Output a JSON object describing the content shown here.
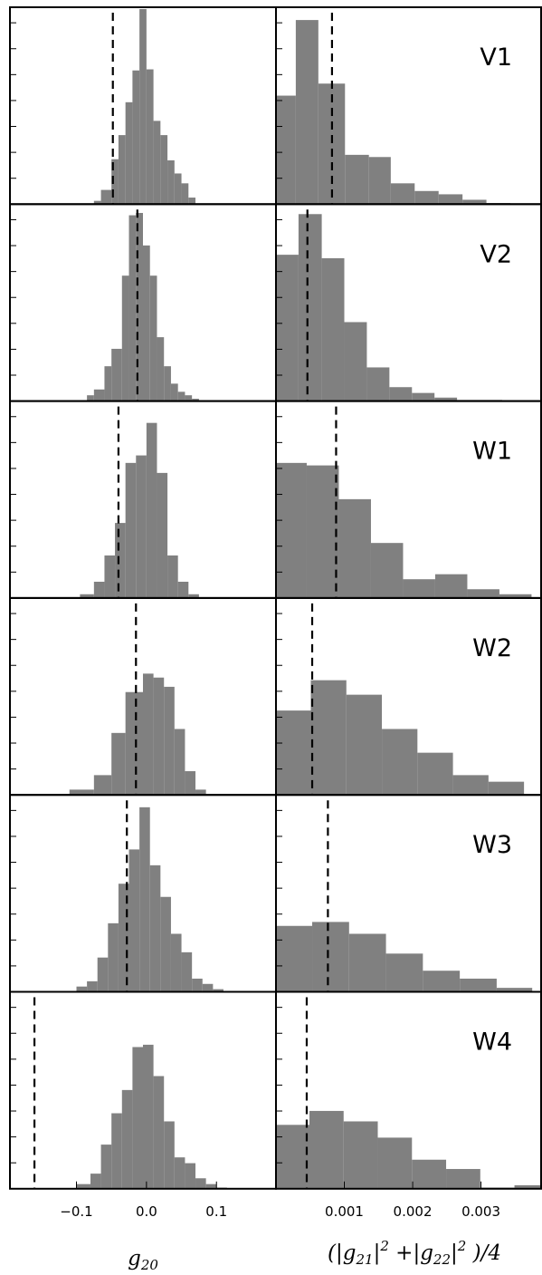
{
  "chart_data": {
    "type": "bar",
    "rows": [
      "V1",
      "V2",
      "W1",
      "W2",
      "W3",
      "W4"
    ],
    "columns": [
      {
        "name": "g20",
        "xlabel": "g_20",
        "xlim": [
          -0.195,
          0.185
        ],
        "xticks": [
          -0.1,
          0.0,
          0.1
        ],
        "xtick_labels": [
          "−0.1",
          "0.0",
          "0.1"
        ]
      },
      {
        "name": "g21g22",
        "xlabel": "(|g_21|^2 +|g_22|^2 )/4",
        "xlim": [
          0.0,
          0.00388
        ],
        "xticks": [
          0.001,
          0.002,
          0.003
        ],
        "xtick_labels": [
          "0.001",
          "0.002",
          "0.003"
        ]
      }
    ],
    "panels": [
      {
        "row": "V1",
        "col": 0,
        "label": "",
        "edges": [
          -0.075,
          -0.065,
          -0.05,
          -0.04,
          -0.03,
          -0.02,
          -0.01,
          0.0,
          0.01,
          0.02,
          0.03,
          0.04,
          0.05,
          0.06,
          0.07
        ],
        "counts": [
          3,
          13,
          41,
          63,
          93,
          122,
          178,
          123,
          76,
          63,
          40,
          28,
          19,
          6
        ],
        "ymax": 178,
        "dashed_x": -0.048
      },
      {
        "row": "V1",
        "col": 1,
        "label": "V1",
        "edges": [
          0.0,
          0.00029,
          0.00062,
          0.00101,
          0.00136,
          0.00168,
          0.00203,
          0.00238,
          0.00273,
          0.00308,
          0.00343
        ],
        "counts": [
          99,
          168,
          110,
          45,
          43,
          19,
          12,
          9,
          4,
          1
        ],
        "ymax": 178,
        "dashed_x": 0.00082
      },
      {
        "row": "V2",
        "col": 0,
        "label": "",
        "edges": [
          -0.085,
          -0.075,
          -0.06,
          -0.05,
          -0.035,
          -0.025,
          -0.015,
          -0.005,
          0.005,
          0.015,
          0.025,
          0.035,
          0.045,
          0.055,
          0.065,
          0.075
        ],
        "counts": [
          5,
          10,
          30,
          45,
          108,
          160,
          162,
          134,
          108,
          55,
          30,
          15,
          8,
          5,
          2
        ],
        "ymax": 168,
        "dashed_x": -0.013
      },
      {
        "row": "V2",
        "col": 1,
        "label": "V2",
        "edges": [
          0.0,
          0.00033,
          0.00067,
          0.001,
          0.00133,
          0.00166,
          0.00199,
          0.00232,
          0.00265,
          0.00298,
          0.00331
        ],
        "counts": [
          126,
          161,
          123,
          68,
          29,
          12,
          7,
          3,
          1,
          1
        ],
        "ymax": 168,
        "dashed_x": 0.00046
      },
      {
        "row": "W1",
        "col": 0,
        "label": "",
        "edges": [
          -0.095,
          -0.075,
          -0.06,
          -0.045,
          -0.03,
          -0.015,
          0.0,
          0.015,
          0.03,
          0.045,
          0.06,
          0.075
        ],
        "counts": [
          3,
          13,
          34,
          60,
          108,
          114,
          140,
          100,
          34,
          13,
          3
        ],
        "ymax": 156,
        "dashed_x": -0.04
      },
      {
        "row": "W1",
        "col": 1,
        "label": "W1",
        "edges": [
          0.0,
          0.00045,
          0.00092,
          0.00139,
          0.00186,
          0.00233,
          0.0028,
          0.00327,
          0.00374
        ],
        "counts": [
          108,
          106,
          79,
          44,
          15,
          19,
          7,
          3
        ],
        "ymax": 156,
        "dashed_x": 0.00088
      },
      {
        "row": "W2",
        "col": 0,
        "label": "",
        "edges": [
          -0.11,
          -0.075,
          -0.05,
          -0.03,
          -0.005,
          0.01,
          0.025,
          0.04,
          0.055,
          0.07,
          0.085
        ],
        "counts": [
          4,
          15,
          47,
          78,
          92,
          89,
          82,
          50,
          18,
          4
        ],
        "ymax": 148,
        "dashed_x": -0.015
      },
      {
        "row": "W2",
        "col": 1,
        "label": "W2",
        "edges": [
          0.0,
          0.00051,
          0.00103,
          0.00155,
          0.00207,
          0.00259,
          0.00311,
          0.00363
        ],
        "counts": [
          64,
          87,
          76,
          50,
          32,
          15,
          10
        ],
        "ymax": 148,
        "dashed_x": 0.00053
      },
      {
        "row": "W3",
        "col": 0,
        "label": "",
        "edges": [
          -0.1,
          -0.085,
          -0.07,
          -0.055,
          -0.04,
          -0.025,
          -0.01,
          0.005,
          0.02,
          0.035,
          0.05,
          0.065,
          0.08,
          0.095,
          0.11
        ],
        "counts": [
          4,
          8,
          26,
          52,
          82,
          108,
          140,
          96,
          72,
          44,
          30,
          10,
          6,
          2
        ],
        "ymax": 148,
        "dashed_x": -0.028
      },
      {
        "row": "W3",
        "col": 1,
        "label": "W3",
        "edges": [
          0.0,
          0.00053,
          0.00107,
          0.00161,
          0.00215,
          0.00269,
          0.00323,
          0.00375
        ],
        "counts": [
          50,
          53,
          44,
          29,
          16,
          10,
          3
        ],
        "ymax": 148,
        "dashed_x": 0.00076
      },
      {
        "row": "W4",
        "col": 0,
        "label": "",
        "edges": [
          -0.1,
          -0.08,
          -0.065,
          -0.05,
          -0.035,
          -0.02,
          -0.005,
          0.01,
          0.025,
          0.04,
          0.055,
          0.07,
          0.085,
          0.1,
          0.115
        ],
        "counts": [
          4,
          13,
          38,
          65,
          85,
          122,
          124,
          97,
          58,
          27,
          22,
          9,
          4,
          1
        ],
        "ymax": 168,
        "dashed_x": -0.16
      },
      {
        "row": "W4",
        "col": 1,
        "label": "W4",
        "edges": [
          0.0,
          0.00049,
          0.00099,
          0.00149,
          0.00199,
          0.00249,
          0.00299,
          0.00349,
          0.00388
        ],
        "counts": [
          55,
          67,
          58,
          44,
          25,
          17,
          1,
          3
        ],
        "ymax": 168,
        "dashed_x": 0.00045
      }
    ]
  }
}
